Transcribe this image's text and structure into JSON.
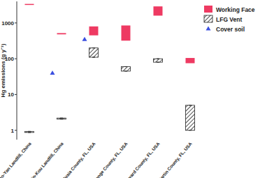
{
  "chart_data": {
    "type": "range_bar",
    "y_label": "Hg emissions (g y⁻¹)",
    "categories": [
      "Gao-Yan Landfill, China",
      "Jin-Kou Landfill, China",
      "Volusia County, FL, USA",
      "Orange County, FL, USA",
      "Brevard County, FL, USA",
      "Martin County, FL, USA"
    ],
    "series": [
      {
        "name": "Working Face",
        "type": "range",
        "color": "#ee3a62",
        "values": [
          [
            3200,
            3400
          ],
          [
            480,
            520
          ],
          [
            450,
            800
          ],
          [
            320,
            850
          ],
          [
            1600,
            2900
          ],
          [
            75,
            105
          ]
        ]
      },
      {
        "name": "LFG Vent",
        "type": "range",
        "color": "#222222",
        "values": [
          [
            0.88,
            0.93
          ],
          [
            2.05,
            2.2
          ],
          [
            110,
            200
          ],
          [
            45,
            60
          ],
          [
            80,
            100
          ],
          [
            1,
            5
          ]
        ]
      },
      {
        "name": "Cover soil",
        "type": "scatter",
        "marker": "triangle",
        "color": "#3b4fe0",
        "values": [
          40,
          350,
          null,
          null,
          null,
          null
        ]
      }
    ],
    "ylim": [
      0.55,
      4000
    ],
    "yticks": [
      1,
      10,
      100,
      1000
    ],
    "log": "y"
  }
}
